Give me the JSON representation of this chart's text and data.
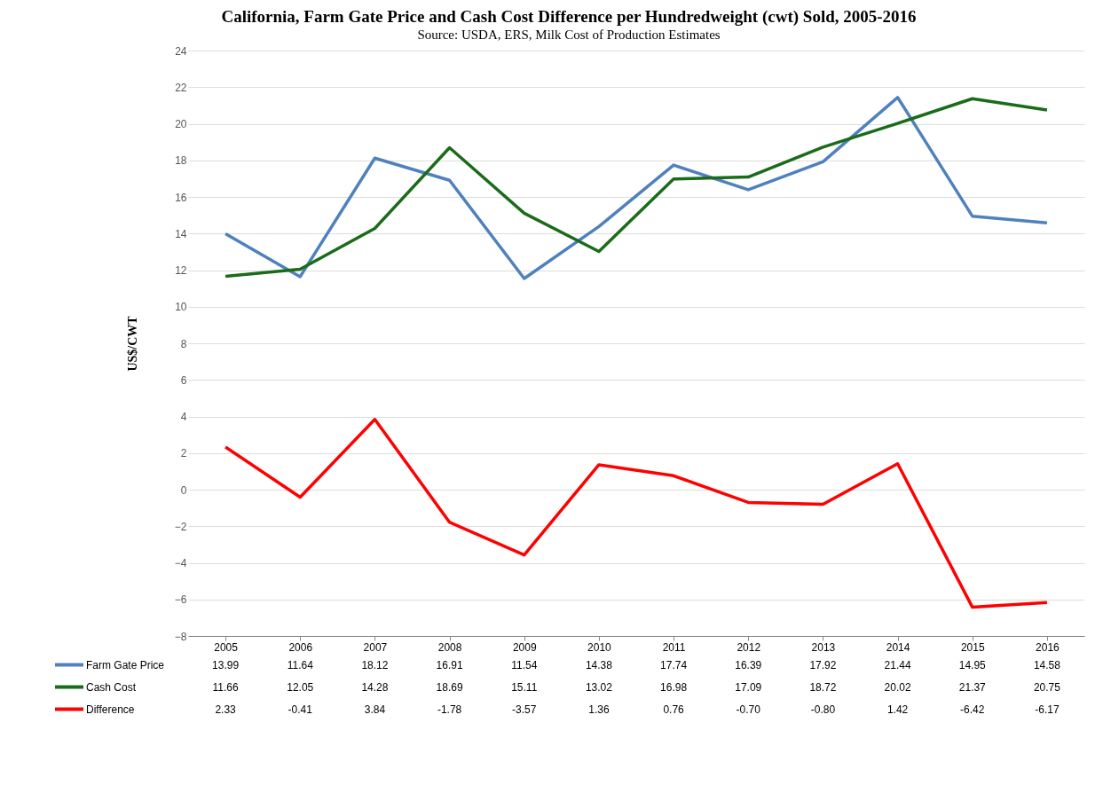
{
  "chart_data": {
    "type": "line",
    "title": "California, Farm Gate Price and Cash Cost Difference per Hundredweight (cwt) Sold, 2005-2016",
    "subtitle": "Source: USDA, ERS, Milk Cost of Production Estimates",
    "ylabel": "US$/CWT",
    "categories": [
      "2005",
      "2006",
      "2007",
      "2008",
      "2009",
      "2010",
      "2011",
      "2012",
      "2013",
      "2014",
      "2015",
      "2016"
    ],
    "series": [
      {
        "name": "Farm Gate Price",
        "color": "#4f81bd",
        "values": [
          13.99,
          11.64,
          18.12,
          16.91,
          11.54,
          14.38,
          17.74,
          16.39,
          17.92,
          21.44,
          14.95,
          14.58
        ],
        "value_labels": [
          "13.99",
          "11.64",
          "18.12",
          "16.91",
          "11.54",
          "14.38",
          "17.74",
          "16.39",
          "17.92",
          "21.44",
          "14.95",
          "14.58"
        ]
      },
      {
        "name": "Cash Cost",
        "color": "#1a6b1a",
        "values": [
          11.66,
          12.05,
          14.28,
          18.69,
          15.11,
          13.02,
          16.98,
          17.09,
          18.72,
          20.02,
          21.37,
          20.75
        ],
        "value_labels": [
          "11.66",
          "12.05",
          "14.28",
          "18.69",
          "15.11",
          "13.02",
          "16.98",
          "17.09",
          "18.72",
          "20.02",
          "21.37",
          "20.75"
        ]
      },
      {
        "name": "Difference",
        "color": "#ff0000",
        "values": [
          2.33,
          -0.41,
          3.84,
          -1.78,
          -3.57,
          1.36,
          0.76,
          -0.7,
          -0.8,
          1.42,
          -6.42,
          -6.17
        ],
        "value_labels": [
          "2.33",
          "-0.41",
          "3.84",
          "-1.78",
          "-3.57",
          "1.36",
          "0.76",
          "-0.70",
          "-0.80",
          "1.42",
          "-6.42",
          "-6.17"
        ]
      }
    ],
    "ylim": [
      -8,
      24
    ],
    "yticks": [
      -8,
      -6,
      -4,
      -2,
      0,
      2,
      4,
      6,
      8,
      10,
      12,
      14,
      16,
      18,
      20,
      22,
      24
    ],
    "grid": "y",
    "legend": "bottom",
    "marker": "none",
    "line_style": "solid"
  }
}
